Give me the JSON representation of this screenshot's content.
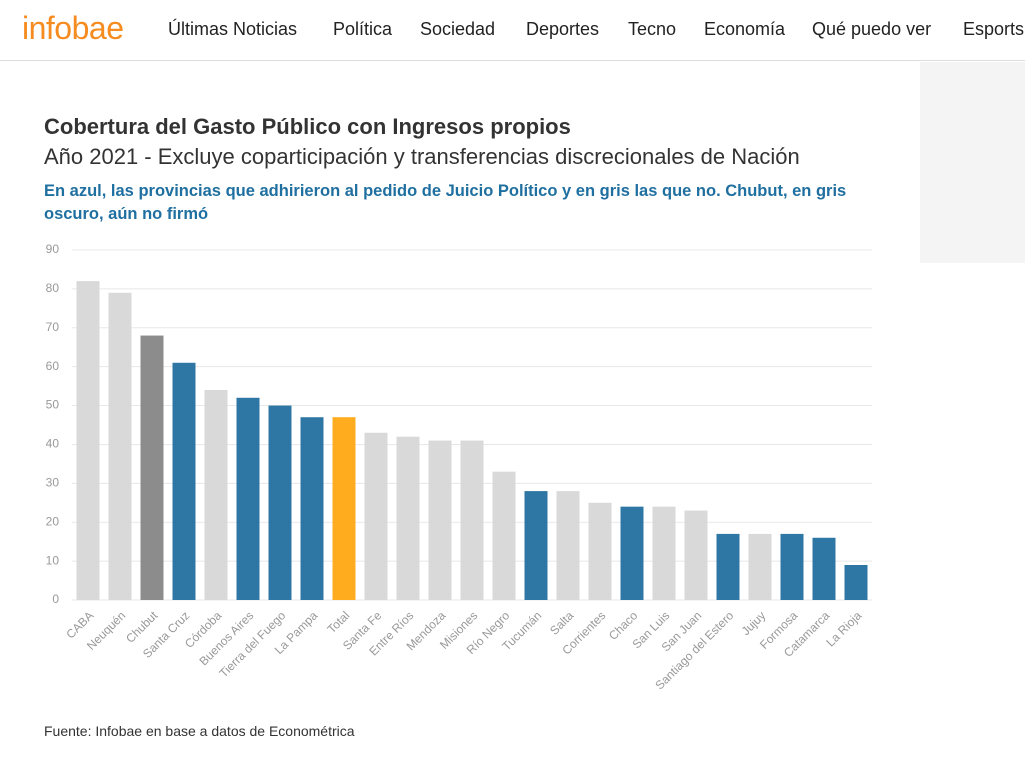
{
  "header": {
    "logo": "infobae",
    "nav": [
      "Últimas Noticias",
      "Política",
      "Sociedad",
      "Deportes",
      "Tecno",
      "Economía",
      "Qué puedo ver",
      "Esports"
    ]
  },
  "chart_data": {
    "type": "bar",
    "title": "Cobertura del Gasto Público con Ingresos propios",
    "subtitle": "Año 2021 - Excluye coparticipación y transferencias discrecionales de Nación",
    "annotation": "En azul, las provincias que adhirieron al pedido de Juicio Político y en gris las que no. Chubut, en gris oscuro, aún no firmó",
    "categories": [
      "CABA",
      "Neuquén",
      "Chubut",
      "Santa Cruz",
      "Córdoba",
      "Buenos Aires",
      "Tierra del Fuego",
      "La Pampa",
      "Total",
      "Santa Fe",
      "Entre Ríos",
      "Mendoza",
      "Misiones",
      "Río Negro",
      "Tucumán",
      "Salta",
      "Corrientes",
      "Chaco",
      "San Luis",
      "San Juan",
      "Santiago del Estero",
      "Jujuy",
      "Formosa",
      "Catamarca",
      "La Rioja"
    ],
    "values": [
      82,
      79,
      68,
      61,
      54,
      52,
      50,
      47,
      47,
      43,
      42,
      41,
      41,
      33,
      28,
      28,
      25,
      24,
      24,
      23,
      17,
      17,
      17,
      16,
      9
    ],
    "colors": [
      "#d9d9d9",
      "#d9d9d9",
      "#8c8c8c",
      "#2e76a3",
      "#d9d9d9",
      "#2e76a3",
      "#2e76a3",
      "#2e76a3",
      "#ffad1f",
      "#d9d9d9",
      "#d9d9d9",
      "#d9d9d9",
      "#d9d9d9",
      "#d9d9d9",
      "#2e76a3",
      "#d9d9d9",
      "#d9d9d9",
      "#2e76a3",
      "#d9d9d9",
      "#d9d9d9",
      "#2e76a3",
      "#d9d9d9",
      "#2e76a3",
      "#2e76a3",
      "#2e76a3"
    ],
    "ylim": [
      0,
      90
    ],
    "yticks": [
      0,
      10,
      20,
      30,
      40,
      50,
      60,
      70,
      80,
      90
    ],
    "grid": true,
    "source": "Fuente: Infobae en base a datos de Econométrica"
  }
}
